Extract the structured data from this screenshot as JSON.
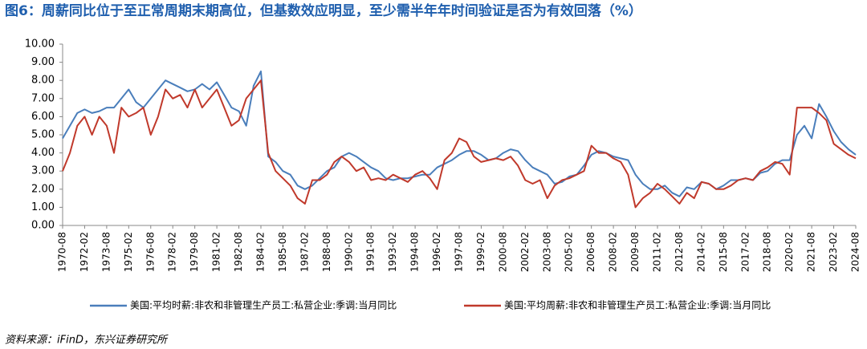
{
  "chart_data": {
    "type": "line",
    "title": "图6：周薪同比位于至正常周期末期高位，但基数效应明显，至少需半年年时间验证是否为有效回落（%）",
    "source": "资料来源：iFinD，东兴证券研究所",
    "categories": [
      "1970-08",
      null,
      null,
      "1972-02",
      null,
      null,
      "1973-08",
      null,
      null,
      "1975-02",
      null,
      null,
      "1976-08",
      null,
      null,
      "1978-02",
      null,
      null,
      "1979-08",
      null,
      null,
      "1981-02",
      null,
      null,
      "1982-08",
      null,
      null,
      "1984-02",
      null,
      null,
      "1985-08",
      null,
      null,
      "1987-02",
      null,
      null,
      "1988-08",
      null,
      null,
      "1990-02",
      null,
      null,
      "1991-08",
      null,
      null,
      "1993-02",
      null,
      null,
      "1994-08",
      null,
      null,
      "1996-02",
      null,
      null,
      "1997-08",
      null,
      null,
      "1999-02",
      null,
      null,
      "2000-08",
      null,
      null,
      "2002-02",
      null,
      null,
      "2003-08",
      null,
      null,
      "2005-02",
      null,
      null,
      "2006-08",
      null,
      null,
      "2008-02",
      null,
      null,
      "2009-08",
      null,
      null,
      "2011-02",
      null,
      null,
      "2012-08",
      null,
      null,
      "2014-02",
      null,
      null,
      "2015-08",
      null,
      null,
      "2017-02",
      null,
      null,
      "2018-08",
      null,
      null,
      "2020-02",
      null,
      null,
      "2021-08",
      null,
      null,
      "2023-02",
      null,
      null,
      "2024-08"
    ],
    "series": [
      {
        "name": "美国:平均时薪:非农和非管理生产员工:私营企业:季调:当月同比",
        "color": "#4a7ebb",
        "values": [
          4.8,
          5.5,
          6.2,
          6.4,
          6.2,
          6.3,
          6.5,
          6.5,
          7.0,
          7.5,
          6.8,
          6.5,
          7.0,
          7.5,
          8.0,
          7.8,
          7.6,
          7.4,
          7.5,
          7.8,
          7.5,
          7.9,
          7.2,
          6.5,
          6.3,
          5.5,
          7.7,
          8.5,
          3.8,
          3.5,
          3.0,
          2.8,
          2.2,
          2.0,
          2.2,
          2.6,
          3.0,
          3.2,
          3.8,
          4.0,
          3.8,
          3.5,
          3.2,
          3.0,
          2.6,
          2.5,
          2.6,
          2.6,
          2.7,
          2.8,
          2.8,
          3.2,
          3.4,
          3.6,
          3.9,
          4.1,
          4.1,
          3.9,
          3.6,
          3.7,
          4.0,
          4.2,
          4.1,
          3.6,
          3.2,
          3.0,
          2.8,
          2.3,
          2.4,
          2.7,
          2.8,
          3.3,
          3.9,
          4.1,
          4.0,
          3.8,
          3.7,
          3.6,
          2.8,
          2.3,
          2.0,
          2.0,
          2.2,
          1.8,
          1.6,
          2.1,
          2.0,
          2.4,
          2.3,
          2.0,
          2.2,
          2.5,
          2.5,
          2.6,
          2.5,
          2.9,
          3.0,
          3.4,
          3.6,
          3.6,
          5.0,
          5.5,
          4.8,
          6.7,
          6.0,
          5.2,
          4.6,
          4.2,
          3.9
        ]
      },
      {
        "name": "美国:平均周薪:非农和非管理生产员工:私营企业:季调:当月同比",
        "color": "#c0392b",
        "values": [
          3.0,
          4.0,
          5.5,
          6.0,
          5.0,
          6.0,
          5.5,
          4.0,
          6.5,
          6.0,
          6.2,
          6.5,
          5.0,
          6.0,
          7.5,
          7.0,
          7.2,
          6.5,
          7.5,
          6.5,
          7.0,
          7.5,
          6.5,
          5.5,
          5.8,
          7.0,
          7.5,
          8.0,
          4.0,
          3.0,
          2.6,
          2.2,
          1.5,
          1.2,
          2.5,
          2.5,
          2.8,
          3.5,
          3.8,
          3.5,
          3.0,
          3.2,
          2.5,
          2.6,
          2.5,
          2.8,
          2.6,
          2.4,
          2.8,
          3.0,
          2.6,
          2.0,
          3.6,
          4.0,
          4.8,
          4.6,
          3.8,
          3.5,
          3.6,
          3.7,
          3.6,
          3.8,
          3.3,
          2.5,
          2.3,
          2.5,
          1.5,
          2.2,
          2.5,
          2.6,
          2.8,
          3.0,
          4.4,
          4.0,
          4.0,
          3.7,
          3.5,
          2.8,
          1.0,
          1.5,
          1.8,
          2.3,
          2.0,
          1.6,
          1.2,
          1.8,
          1.5,
          2.4,
          2.3,
          2.0,
          2.0,
          2.2,
          2.5,
          2.6,
          2.5,
          3.0,
          3.2,
          3.5,
          3.4,
          2.8,
          6.5,
          6.5,
          6.5,
          6.2,
          5.8,
          4.5,
          4.2,
          3.9,
          3.7
        ]
      }
    ],
    "ylim": [
      0,
      10
    ],
    "yticks": [
      {
        "value": 0,
        "label": "0.00"
      },
      {
        "value": 1,
        "label": "1.00"
      },
      {
        "value": 2,
        "label": "2.00"
      },
      {
        "value": 3,
        "label": "3.00"
      },
      {
        "value": 4,
        "label": "4.00"
      },
      {
        "value": 5,
        "label": "5.00"
      },
      {
        "value": 6,
        "label": "6.00"
      },
      {
        "value": 7,
        "label": "7.00"
      },
      {
        "value": 8,
        "label": "8.00"
      },
      {
        "value": 9,
        "label": "9.00"
      },
      {
        "value": 10,
        "label": "10.00"
      }
    ],
    "grid": false
  }
}
